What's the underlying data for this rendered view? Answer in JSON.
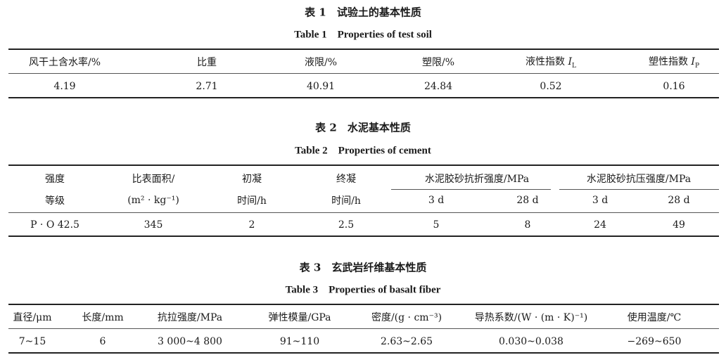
{
  "table1": {
    "title": "表 1　试验土的基本性质",
    "subtitle": "Table 1　Properties of test soil",
    "headers": [
      "风干土含水率/%",
      "比重",
      "液限/%",
      "塑限/%",
      "液性指数 ",
      "塑性指数 "
    ],
    "index_symbols": {
      "liquidity": "I",
      "liquidity_sub": "L",
      "plasticity": "I",
      "plasticity_sub": "P"
    },
    "row": [
      "4.19",
      "2.71",
      "40.91",
      "24.84",
      "0.52",
      "0.16"
    ]
  },
  "table2": {
    "title": "表 2　水泥基本性质",
    "subtitle": "Table 2　Properties of cement",
    "headers_top": [
      "强度",
      "比表面积/",
      "初凝",
      "终凝",
      "水泥胶砂抗折强度/MPa",
      "水泥胶砂抗压强度/MPa"
    ],
    "headers_bottom": [
      "等级",
      "(m² · kg⁻¹)",
      "时间/h",
      "时间/h",
      "3 d",
      "28 d",
      "3 d",
      "28 d"
    ],
    "row": [
      "P · O 42.5",
      "345",
      "2",
      "2.5",
      "5",
      "8",
      "24",
      "49"
    ]
  },
  "table3": {
    "title": "表 3　玄武岩纤维基本性质",
    "subtitle": "Table 3　Properties of basalt fiber",
    "headers": [
      "直径/μm",
      "长度/mm",
      "抗拉强度/MPa",
      "弹性模量/GPa",
      "密度/(g · cm⁻³)",
      "导热系数/(W · (m · K)⁻¹)",
      "使用温度/℃"
    ],
    "row": [
      "7~15",
      "6",
      "3 000~4 800",
      "91~110",
      "2.63~2.65",
      "0.030~0.038",
      "−269~650"
    ]
  }
}
